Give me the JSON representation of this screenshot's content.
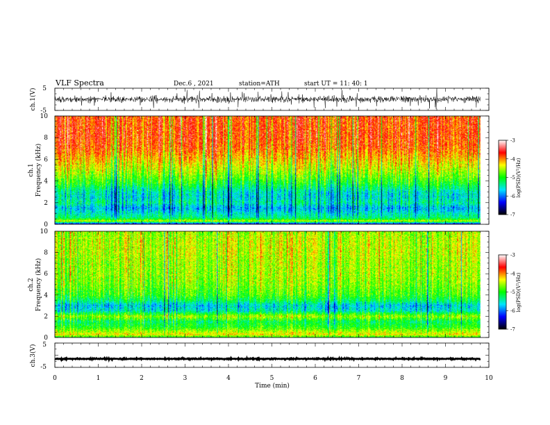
{
  "header": {
    "title": "VLF Spectra",
    "date": "Dec.6  , 2021",
    "station": "station=ATH",
    "start": "start  UT  =    11: 40: 1"
  },
  "chart_data": [
    {
      "type": "line",
      "name": "ch1-waveform",
      "ylabel": "ch.1(V)",
      "ylim": [
        -5,
        5
      ],
      "yticks": [
        "5",
        "-5"
      ],
      "xlim": [
        0,
        10
      ],
      "trace": {
        "mean": 0,
        "amplitude_typical": 2.2,
        "amplitude_peak": 4.4,
        "data_end_min": 9.8
      }
    },
    {
      "type": "heatmap",
      "name": "ch1-spectrogram",
      "ylabel": "ch.1\nFrequency (kHz)",
      "ylim": [
        0,
        10
      ],
      "yticks": [
        "0",
        "2",
        "4",
        "6",
        "8",
        "10"
      ],
      "xlim": [
        0,
        10
      ],
      "data_end_min": 9.8,
      "colorbar": {
        "label": "log(PSD)(V²/Hz)",
        "ticks": [
          "-3",
          "-4",
          "-5",
          "-6",
          "-7"
        ],
        "range": [
          -7,
          -3
        ]
      },
      "frequency_profile_logpsd": [
        {
          "f": 0.0,
          "v": -6.6
        },
        {
          "f": 0.3,
          "v": -4.5
        },
        {
          "f": 0.6,
          "v": -5.3
        },
        {
          "f": 1.0,
          "v": -5.5
        },
        {
          "f": 1.5,
          "v": -5.8
        },
        {
          "f": 2.0,
          "v": -5.4
        },
        {
          "f": 2.5,
          "v": -5.6
        },
        {
          "f": 3.0,
          "v": -5.5
        },
        {
          "f": 3.8,
          "v": -5.0
        },
        {
          "f": 4.5,
          "v": -4.7
        },
        {
          "f": 5.0,
          "v": -4.5
        },
        {
          "f": 6.0,
          "v": -4.2
        },
        {
          "f": 7.0,
          "v": -3.9
        },
        {
          "f": 8.0,
          "v": -3.8
        },
        {
          "f": 9.0,
          "v": -3.8
        },
        {
          "f": 10.0,
          "v": -3.8
        }
      ]
    },
    {
      "type": "heatmap",
      "name": "ch2-spectrogram",
      "ylabel": "ch.2\nFrequency (kHz)",
      "ylim": [
        0,
        10
      ],
      "yticks": [
        "0",
        "2",
        "4",
        "6",
        "8",
        "10"
      ],
      "xlim": [
        0,
        10
      ],
      "data_end_min": 9.8,
      "colorbar": {
        "label": "log(PSD)(V²/Hz)",
        "ticks": [
          "-3",
          "-4",
          "-5",
          "-6",
          "-7"
        ],
        "range": [
          -7,
          -3
        ]
      },
      "frequency_profile_logpsd": [
        {
          "f": 0.0,
          "v": -5.0
        },
        {
          "f": 0.3,
          "v": -4.3
        },
        {
          "f": 1.0,
          "v": -5.0
        },
        {
          "f": 1.5,
          "v": -5.2
        },
        {
          "f": 2.0,
          "v": -4.6
        },
        {
          "f": 2.5,
          "v": -5.5
        },
        {
          "f": 3.0,
          "v": -5.7
        },
        {
          "f": 3.5,
          "v": -5.2
        },
        {
          "f": 4.0,
          "v": -4.9
        },
        {
          "f": 5.0,
          "v": -4.7
        },
        {
          "f": 6.0,
          "v": -4.6
        },
        {
          "f": 7.0,
          "v": -4.6
        },
        {
          "f": 8.0,
          "v": -4.5
        },
        {
          "f": 9.0,
          "v": -4.5
        },
        {
          "f": 10.0,
          "v": -4.6
        }
      ]
    },
    {
      "type": "line",
      "name": "ch3-waveform",
      "ylabel": "ch.3(V)",
      "ylim": [
        -5,
        5
      ],
      "yticks": [
        "5",
        "-5"
      ],
      "xlim": [
        0,
        10
      ],
      "trace": {
        "mean": -1.5,
        "amplitude_typical": 0.25,
        "amplitude_peak": 0.3,
        "data_end_min": 9.8
      }
    }
  ],
  "xaxis": {
    "label": "Time  (min)",
    "ticks": [
      "0",
      "1",
      "2",
      "3",
      "4",
      "5",
      "6",
      "7",
      "8",
      "9",
      "10"
    ],
    "range": [
      0,
      10
    ]
  },
  "colors": {
    "colormap": [
      "#000000",
      "#0000ff",
      "#00e5ff",
      "#00ff00",
      "#ffff00",
      "#ff0000",
      "#ffffff"
    ]
  }
}
